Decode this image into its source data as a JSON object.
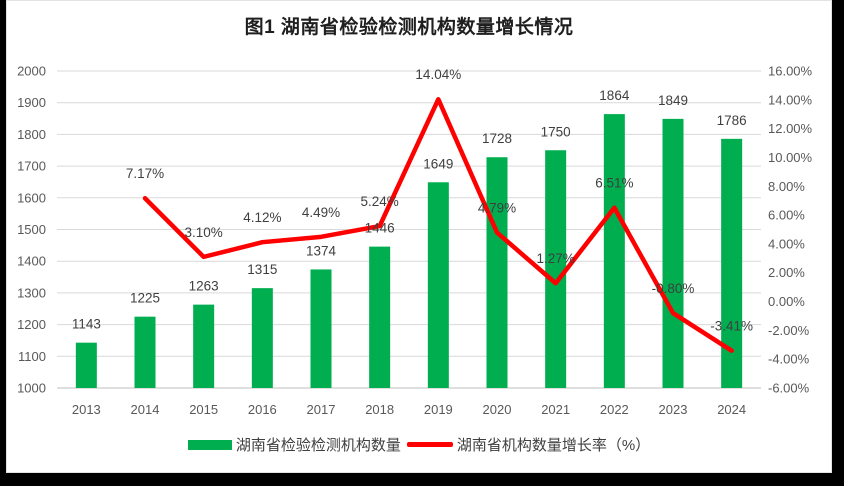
{
  "title": "图1 湖南省检验检测机构数量增长情况",
  "chart_data": {
    "type": "bar+line",
    "categories": [
      "2013",
      "2014",
      "2015",
      "2016",
      "2017",
      "2018",
      "2019",
      "2020",
      "2021",
      "2022",
      "2023",
      "2024"
    ],
    "series": [
      {
        "name": "湖南省检验检测机构数量",
        "type": "bar",
        "axis": "left",
        "color": "#00AE50",
        "values": [
          1143,
          1225,
          1263,
          1315,
          1374,
          1446,
          1649,
          1728,
          1750,
          1864,
          1849,
          1786
        ],
        "value_labels": [
          "1143",
          "1225",
          "1263",
          "1315",
          "1374",
          "1446",
          "1649",
          "1728",
          "1750",
          "1864",
          "1849",
          "1786"
        ]
      },
      {
        "name": "湖南省机构数量增长率（%）",
        "type": "line",
        "axis": "right",
        "color": "#FF0000",
        "values": [
          null,
          7.17,
          3.1,
          4.12,
          4.49,
          5.24,
          14.04,
          4.79,
          1.27,
          6.51,
          -0.8,
          -3.41
        ],
        "point_labels": [
          "",
          "7.17%",
          "3.10%",
          "4.12%",
          "4.49%",
          "5.24%",
          "14.04%",
          "4.79%",
          "1.27%",
          "6.51%",
          "-0.80%",
          "-3.41%"
        ]
      }
    ],
    "left_axis": {
      "min": 1000,
      "max": 2000,
      "step": 100,
      "tick_labels": [
        "2000",
        "1900",
        "1800",
        "1700",
        "1600",
        "1500",
        "1400",
        "1300",
        "1200",
        "1100",
        "1000"
      ]
    },
    "right_axis": {
      "min": -6,
      "max": 16,
      "step": 2,
      "tick_labels": [
        "16.00%",
        "14.00%",
        "12.00%",
        "10.00%",
        "8.00%",
        "6.00%",
        "4.00%",
        "2.00%",
        "0.00%",
        "-2.00%",
        "-4.00%",
        "-6.00%"
      ]
    },
    "grid": true,
    "legend_position": "bottom",
    "colors": {
      "bar": "#00AE50",
      "line": "#FF0000",
      "grid": "#D9D9D9",
      "axis_line": "#BFBFBF",
      "axis_text": "#595959",
      "label_text": "#3f3f3f",
      "title_text": "#1f1f1f",
      "background": "#ffffff",
      "surround": "#000000"
    }
  }
}
